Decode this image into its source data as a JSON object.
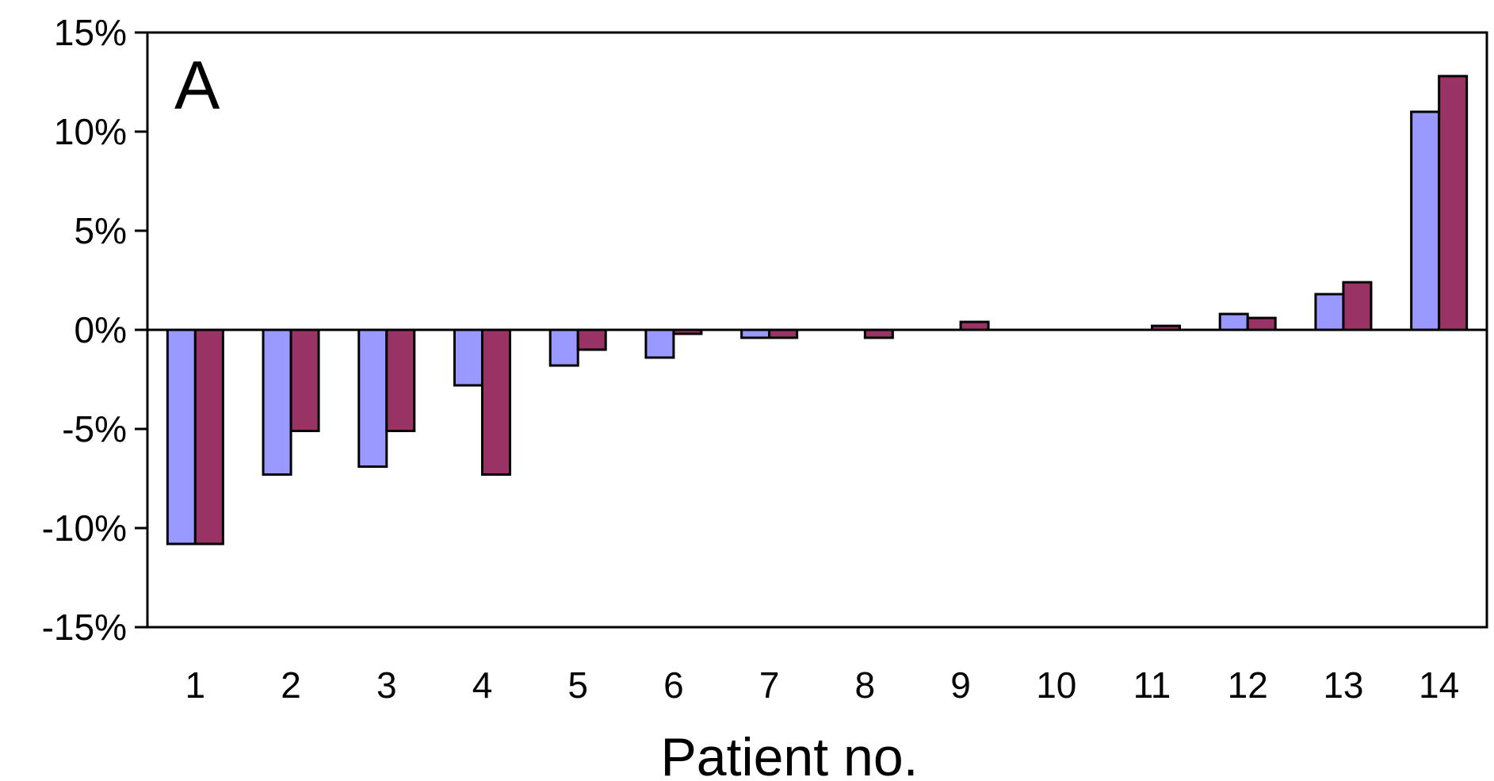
{
  "chart_data": {
    "type": "bar",
    "panel_label": "A",
    "title": "",
    "xlabel": "Patient no.",
    "ylabel": "",
    "ylim": [
      -15,
      15
    ],
    "y_ticks": [
      15,
      10,
      5,
      0,
      -5,
      -10,
      -15
    ],
    "y_tick_labels": [
      "15%",
      "10%",
      "5%",
      "0%",
      "-5%",
      "-10%",
      "-15%"
    ],
    "categories": [
      "1",
      "2",
      "3",
      "4",
      "5",
      "6",
      "7",
      "8",
      "9",
      "10",
      "11",
      "12",
      "13",
      "14"
    ],
    "series": [
      {
        "color": "#9999ff",
        "values": [
          -10.8,
          -7.3,
          -6.9,
          -2.8,
          -1.8,
          -1.4,
          -0.4,
          0,
          0,
          0,
          0,
          0.8,
          1.8,
          11.0
        ]
      },
      {
        "color": "#993366",
        "values": [
          -10.8,
          -5.1,
          -5.1,
          -7.3,
          -1.0,
          -0.2,
          -0.4,
          -0.4,
          0.4,
          0,
          0.2,
          0.6,
          2.4,
          12.8
        ]
      }
    ],
    "legend": "none",
    "grid": false
  }
}
